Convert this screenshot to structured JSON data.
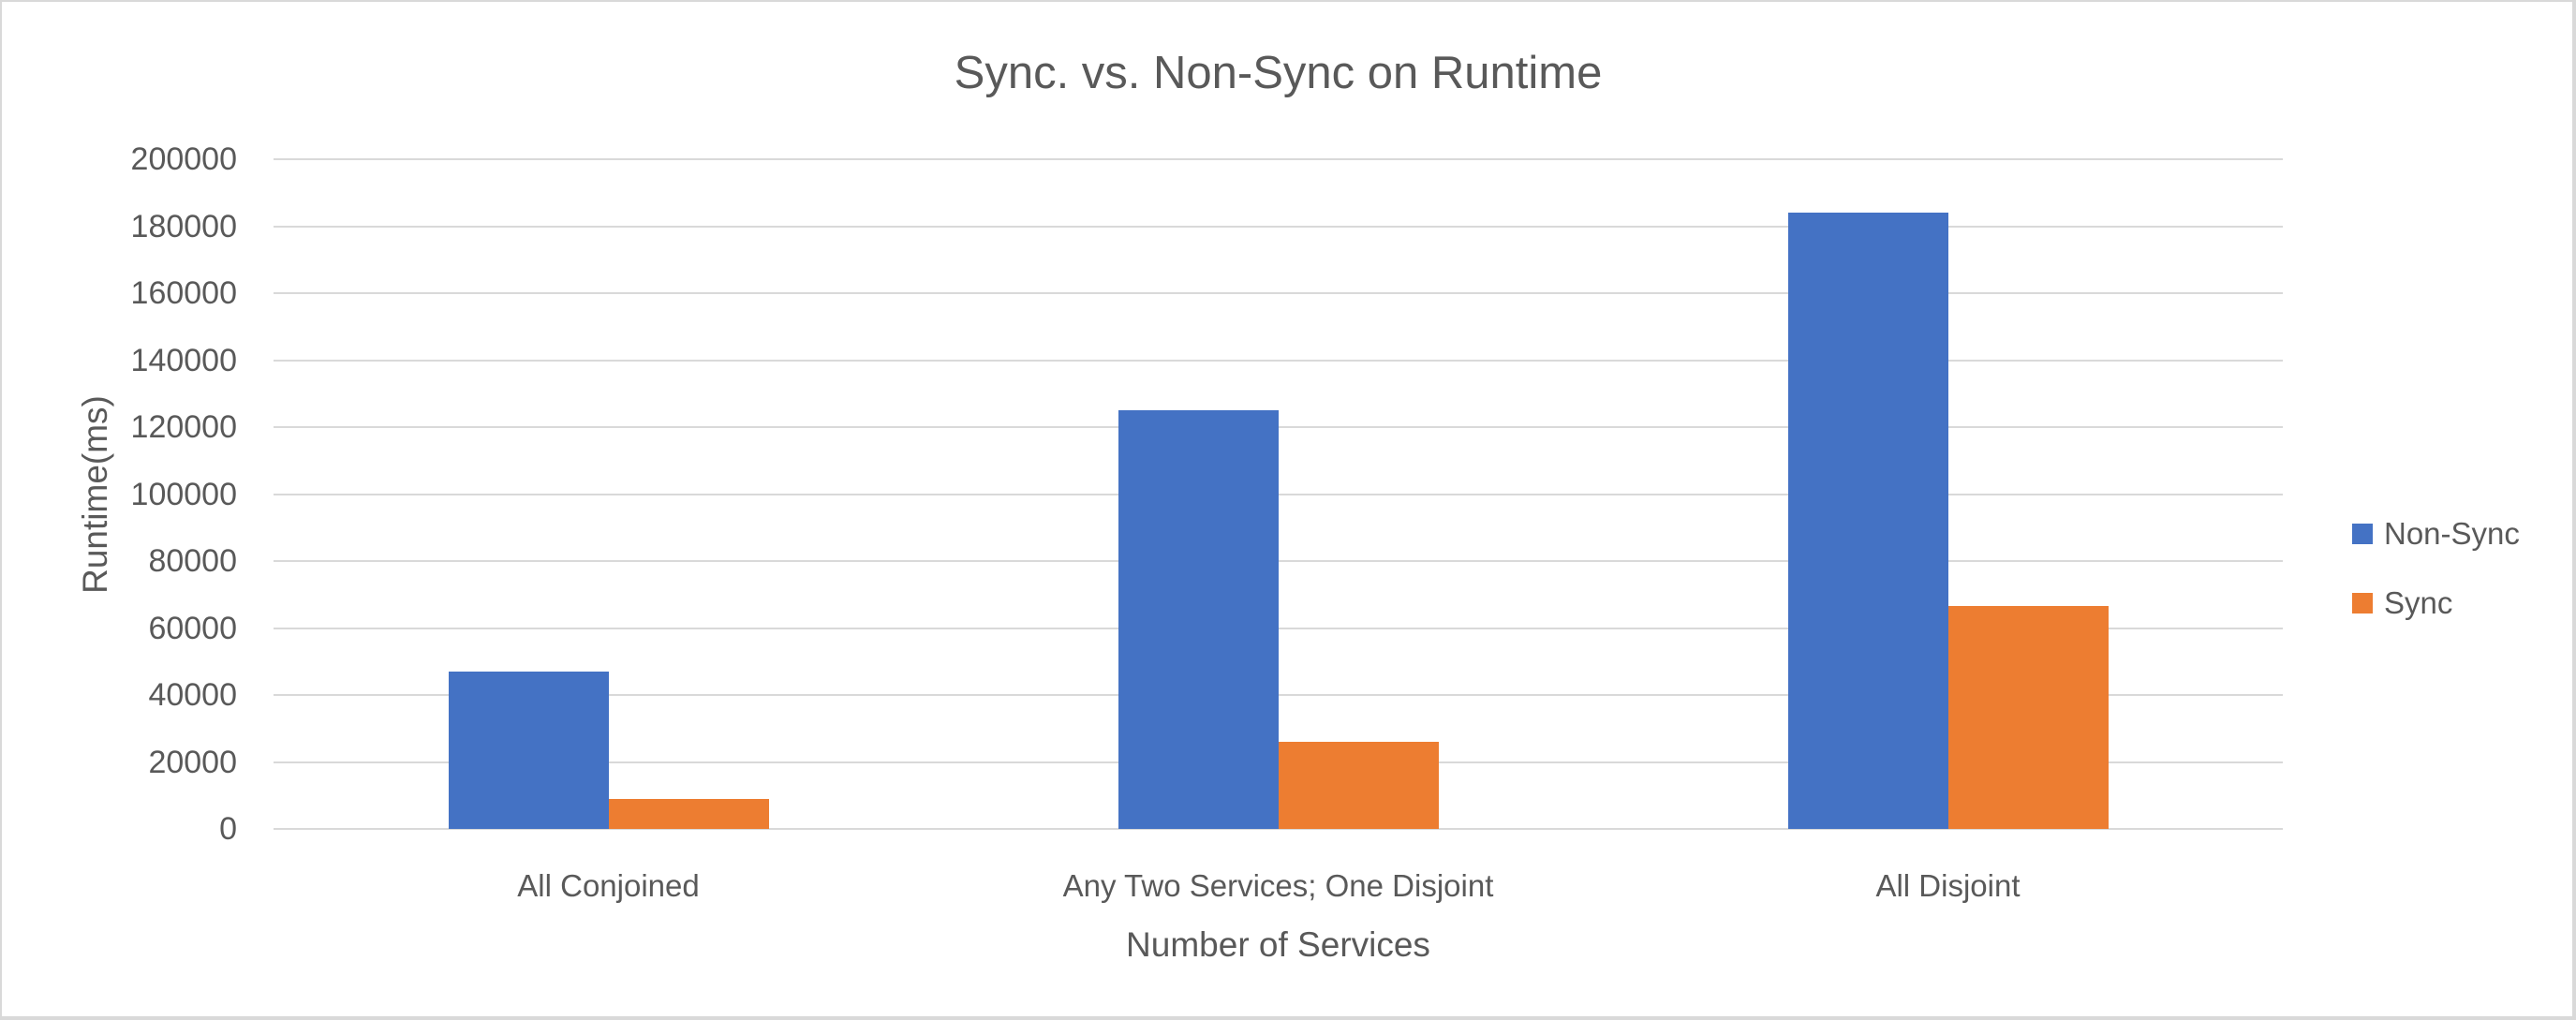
{
  "chart_data": {
    "type": "bar",
    "title": "Sync. vs. Non-Sync on Runtime",
    "xlabel": "Number of Services",
    "ylabel": "Runtime(ms)",
    "categories": [
      "All Conjoined",
      "Any Two Services; One Disjoint",
      "All Disjoint"
    ],
    "series": [
      {
        "name": "Non-Sync",
        "color": "#4472C4",
        "values": [
          47000,
          125000,
          184000
        ]
      },
      {
        "name": "Sync",
        "color": "#ED7D31",
        "values": [
          9000,
          26000,
          66500
        ]
      }
    ],
    "ylim": [
      0,
      200000
    ],
    "yticks": [
      0,
      20000,
      40000,
      60000,
      80000,
      100000,
      120000,
      140000,
      160000,
      180000,
      200000
    ],
    "grid": "horizontal",
    "legend_position": "right"
  },
  "colors": {
    "text": "#595959",
    "gridline": "#D9D9D9",
    "background": "#FFFFFF",
    "frame_border": "#D9D9D9"
  }
}
